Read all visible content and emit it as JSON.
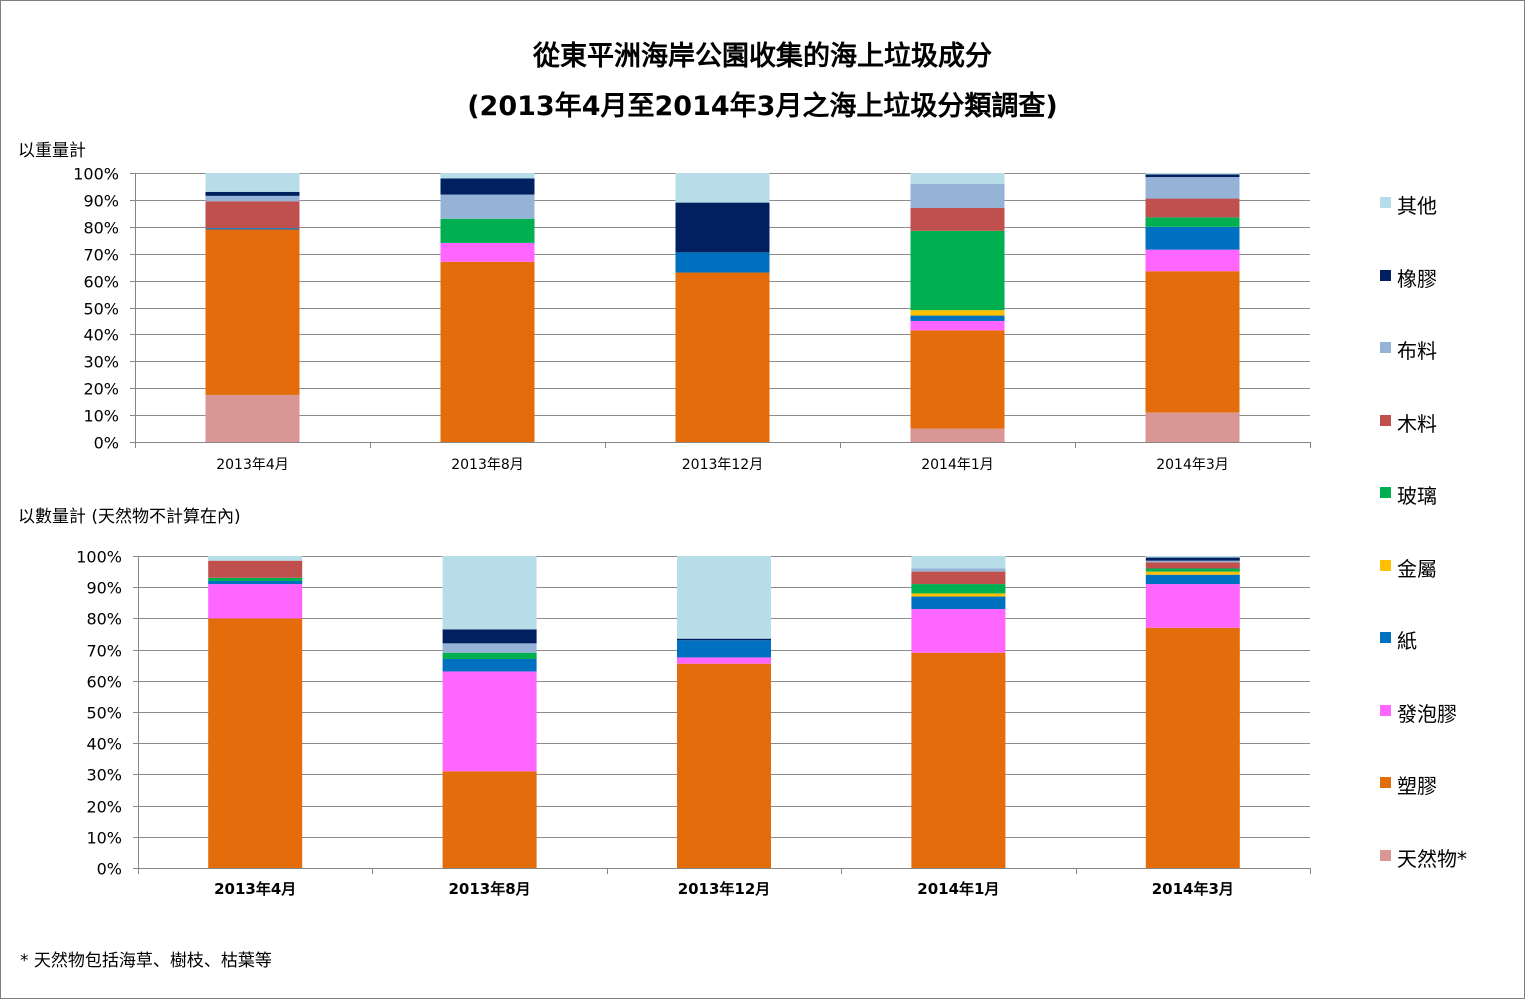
{
  "title_line1": "從東平洲海岸公園收集的海上垃圾成分",
  "title_line2": "(2013年4月至2014年3月之海上垃圾分類調查)",
  "chart1_label": "以重量計",
  "chart2_label": "以數量計 (天然物不計算在內)",
  "footnote": "* 天然物包括海草、樹枝、枯葉等",
  "legend": [
    {
      "name": "其他",
      "color": "#b7dde8"
    },
    {
      "name": "橡膠",
      "color": "#002060"
    },
    {
      "name": "布料",
      "color": "#95b3d7"
    },
    {
      "name": "木料",
      "color": "#c0504d"
    },
    {
      "name": "玻璃",
      "color": "#00b050"
    },
    {
      "name": "金屬",
      "color": "#ffc000"
    },
    {
      "name": "紙",
      "color": "#0070c0"
    },
    {
      "name": "發泡膠",
      "color": "#ff66ff"
    },
    {
      "name": "塑膠",
      "color": "#e46c0a"
    },
    {
      "name": "天然物*",
      "color": "#da9694"
    }
  ],
  "chart_data": [
    {
      "type": "bar",
      "stacked": true,
      "title": "以重量計",
      "categories": [
        "2013年4月",
        "2013年8月",
        "2013年12月",
        "2014年1月",
        "2014年3月"
      ],
      "ylim": [
        0,
        100
      ],
      "yticks": [
        "0%",
        "10%",
        "20%",
        "30%",
        "40%",
        "50%",
        "60%",
        "70%",
        "80%",
        "90%",
        "100%"
      ],
      "series": [
        {
          "name": "天然物*",
          "values": [
            17.5,
            0,
            0,
            5,
            11
          ]
        },
        {
          "name": "塑膠",
          "values": [
            61.5,
            67,
            63,
            36.5,
            52.5
          ]
        },
        {
          "name": "發泡膠",
          "values": [
            0,
            7,
            0,
            3.5,
            8
          ]
        },
        {
          "name": "紙",
          "values": [
            0.5,
            0,
            7.5,
            2,
            8.5
          ]
        },
        {
          "name": "金屬",
          "values": [
            0,
            0,
            0,
            2,
            0
          ]
        },
        {
          "name": "玻璃",
          "values": [
            0,
            9,
            0,
            29.5,
            3.5
          ]
        },
        {
          "name": "木料",
          "values": [
            10,
            0,
            0,
            8.5,
            7
          ]
        },
        {
          "name": "布料",
          "values": [
            2,
            9,
            0,
            9,
            8
          ]
        },
        {
          "name": "橡膠",
          "values": [
            1.5,
            6,
            18.5,
            0,
            1
          ]
        },
        {
          "name": "其他",
          "values": [
            7,
            2,
            11,
            4,
            0.5
          ]
        }
      ]
    },
    {
      "type": "bar",
      "stacked": true,
      "title": "以數量計 (天然物不計算在內)",
      "categories": [
        "2013年4月",
        "2013年8月",
        "2013年12月",
        "2014年1月",
        "2014年3月"
      ],
      "ylim": [
        0,
        100
      ],
      "yticks": [
        "0%",
        "10%",
        "20%",
        "30%",
        "40%",
        "50%",
        "60%",
        "70%",
        "80%",
        "90%",
        "100%"
      ],
      "series": [
        {
          "name": "天然物*",
          "values": [
            0,
            0,
            0,
            0,
            0
          ]
        },
        {
          "name": "塑膠",
          "values": [
            80,
            31,
            65.5,
            69,
            77
          ]
        },
        {
          "name": "發泡膠",
          "values": [
            11,
            32,
            2,
            14,
            14
          ]
        },
        {
          "name": "紙",
          "values": [
            1,
            4,
            5.5,
            4,
            3
          ]
        },
        {
          "name": "金屬",
          "values": [
            0,
            0,
            0,
            1,
            1
          ]
        },
        {
          "name": "玻璃",
          "values": [
            1,
            2,
            0,
            3,
            1
          ]
        },
        {
          "name": "木料",
          "values": [
            5.5,
            0,
            0,
            4,
            2
          ]
        },
        {
          "name": "布料",
          "values": [
            0,
            3,
            0,
            1,
            0.5
          ]
        },
        {
          "name": "橡膠",
          "values": [
            0,
            4.5,
            0.5,
            0,
            1
          ]
        },
        {
          "name": "其他",
          "values": [
            1.5,
            23.5,
            26.5,
            4,
            0.5
          ]
        }
      ]
    }
  ]
}
